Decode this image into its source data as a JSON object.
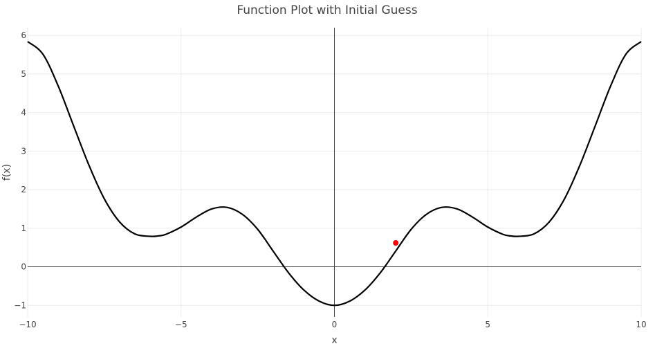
{
  "chart_data": {
    "type": "line",
    "title": "Function Plot with Initial Guess",
    "xlabel": "x",
    "ylabel": "f(x)",
    "xlim": [
      -10,
      10
    ],
    "ylim": [
      -1.3,
      6.2
    ],
    "grid": true,
    "legend": "none",
    "x_ticks": [
      -10,
      -5,
      0,
      5,
      10
    ],
    "x_tick_labels": [
      "−10",
      "−5",
      "0",
      "5",
      "10"
    ],
    "y_ticks": [
      -1,
      0,
      1,
      2,
      3,
      4,
      5,
      6
    ],
    "y_tick_labels": [
      "−1",
      "0",
      "1",
      "2",
      "3",
      "4",
      "5",
      "6"
    ],
    "series": [
      {
        "color": "#000000",
        "x": [
          -10,
          -9.5,
          -9,
          -8.5,
          -8,
          -7.5,
          -7,
          -6.5,
          -6,
          -5.75,
          -5.5,
          -5,
          -4.5,
          -4,
          -3.5,
          -3,
          -2.5,
          -2,
          -1.5,
          -1,
          -0.5,
          0,
          0.5,
          1,
          1.5,
          2,
          2.5,
          3,
          3.5,
          4,
          4.5,
          5,
          5.5,
          5.75,
          6,
          6.5,
          7,
          7.5,
          8,
          8.5,
          9,
          9.5,
          10
        ],
        "y": [
          5.84,
          5.51,
          4.68,
          3.65,
          2.63,
          1.76,
          1.16,
          0.85,
          0.79,
          0.8,
          0.84,
          1.03,
          1.29,
          1.5,
          1.54,
          1.36,
          0.97,
          0.41,
          -0.15,
          -0.6,
          -0.89,
          -1.0,
          -0.89,
          -0.6,
          -0.15,
          0.41,
          0.97,
          1.36,
          1.54,
          1.5,
          1.29,
          1.03,
          0.84,
          0.8,
          0.79,
          0.85,
          1.16,
          1.76,
          2.63,
          3.65,
          4.68,
          5.51,
          5.84
        ]
      },
      {
        "color": "#ff0000",
        "x": [
          2
        ],
        "y": [
          0.62
        ]
      }
    ]
  }
}
